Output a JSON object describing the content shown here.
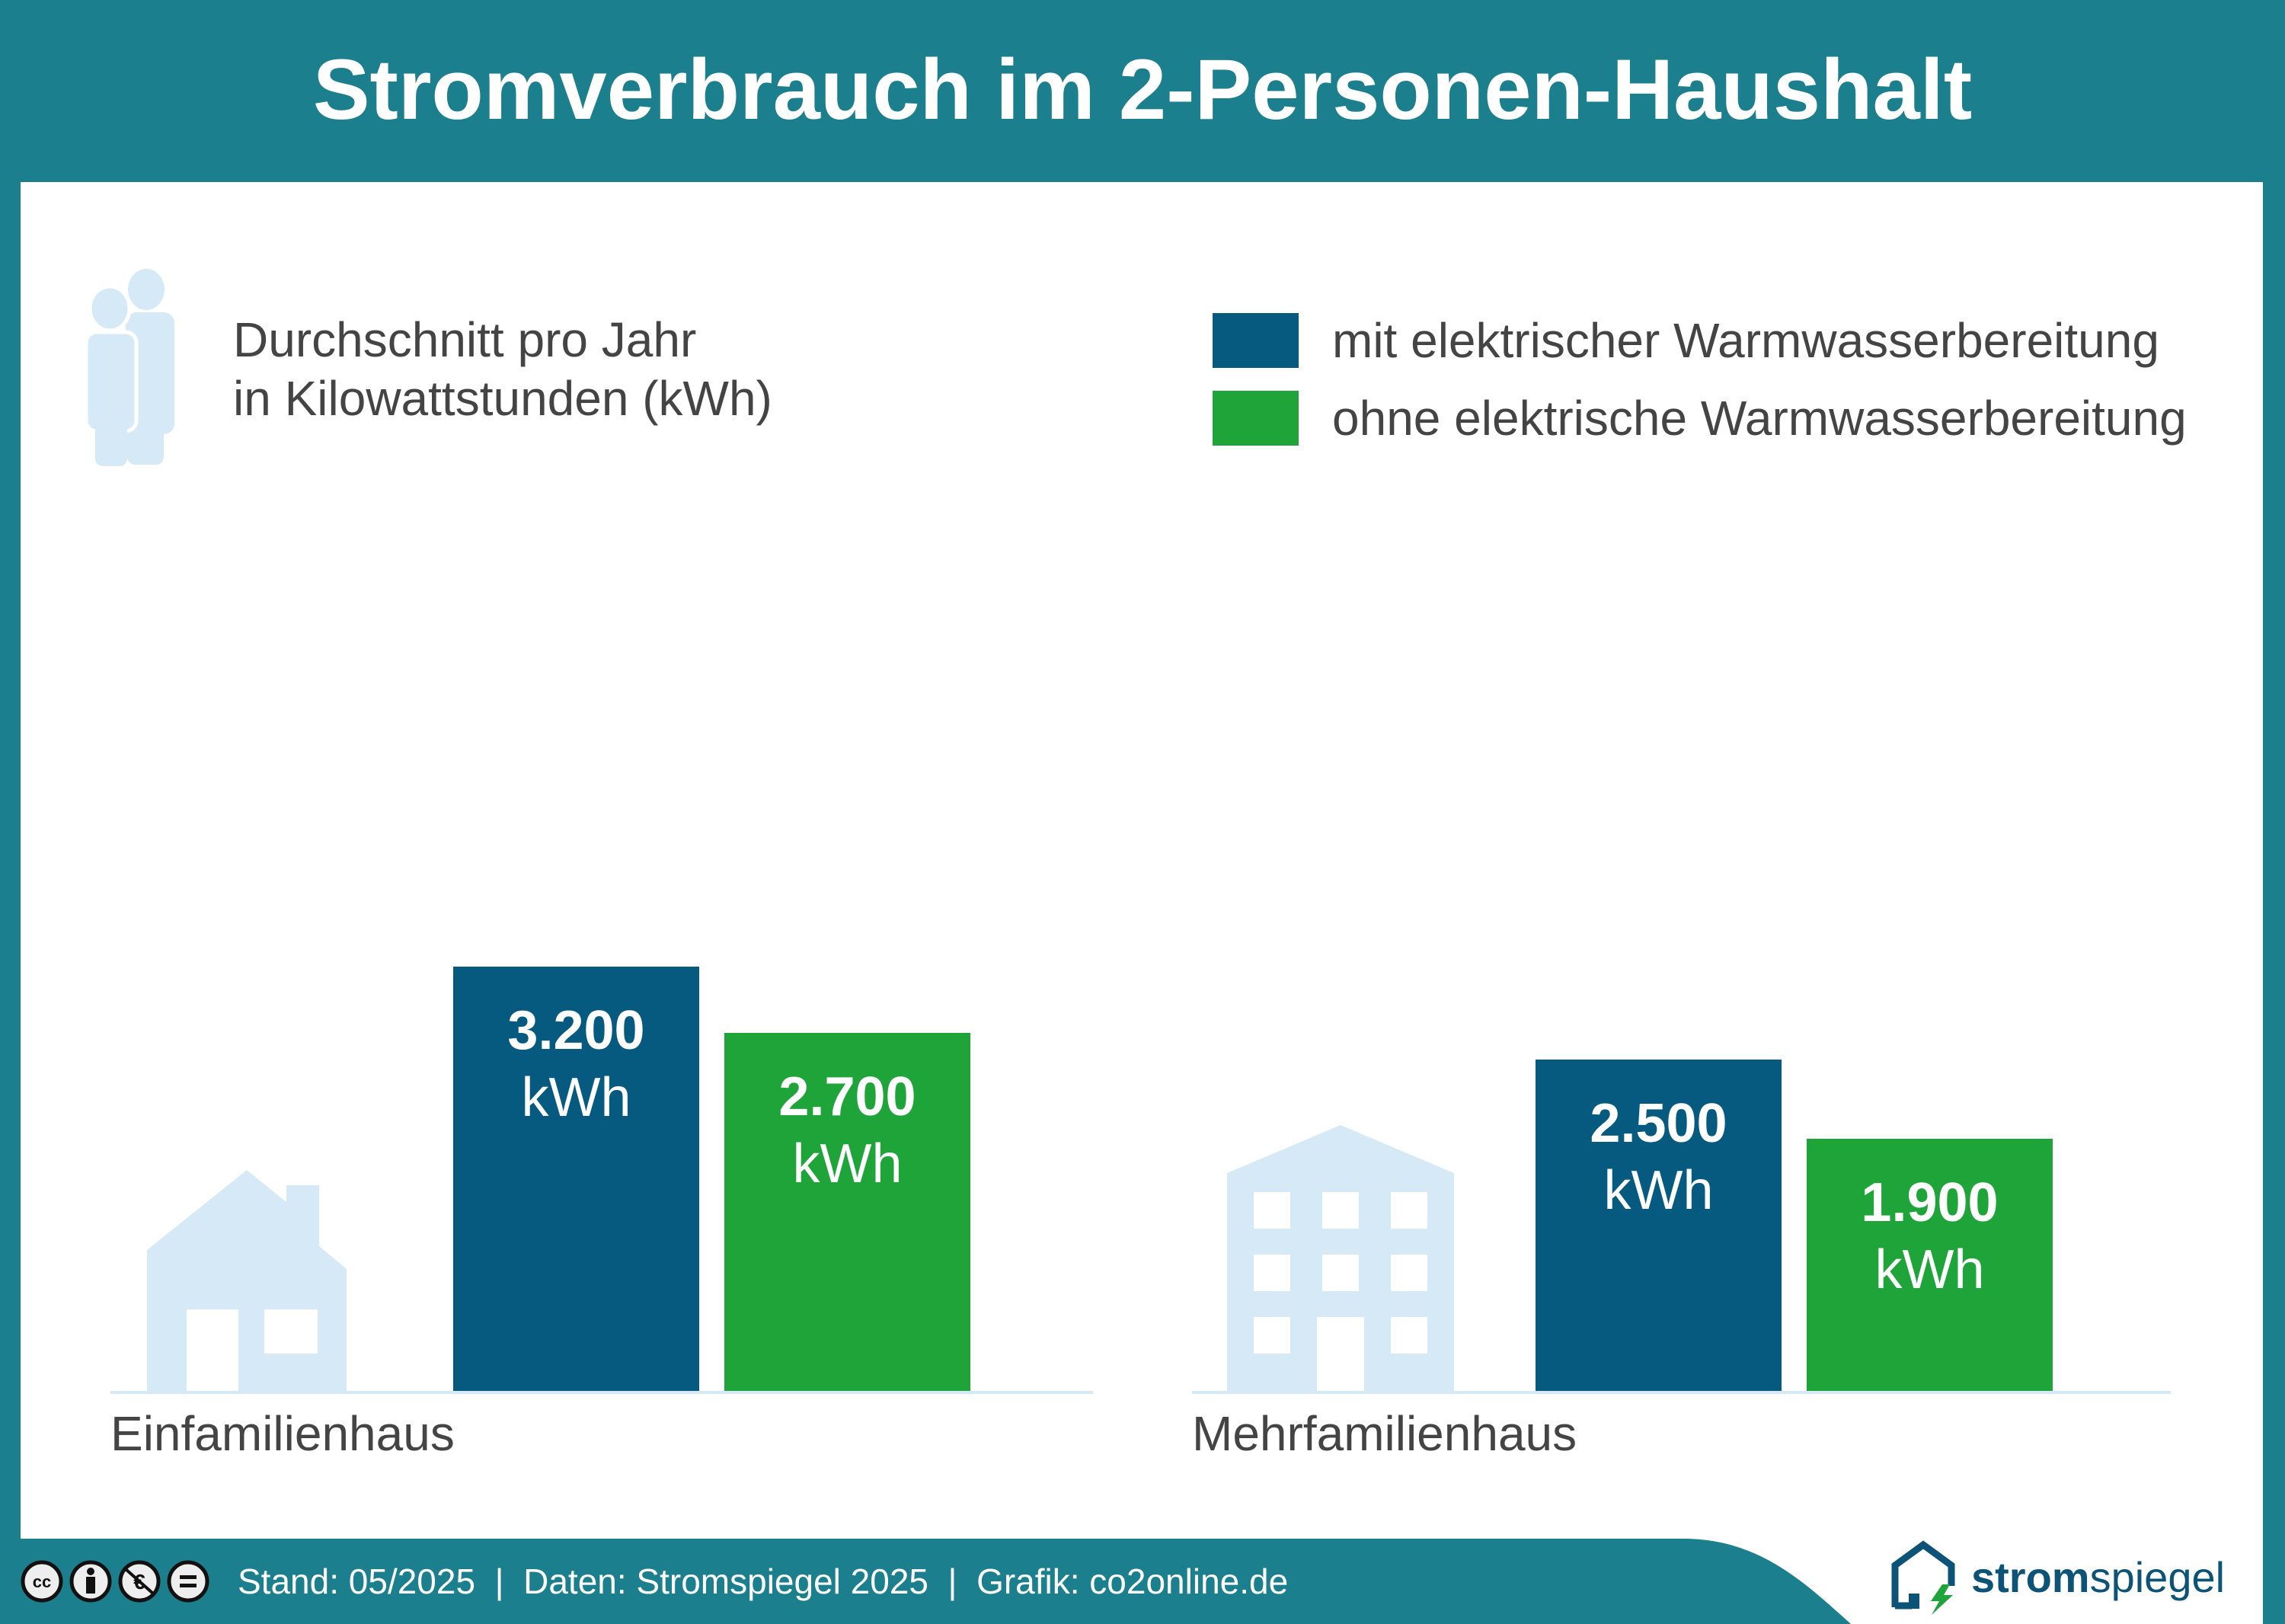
{
  "title": "Stromverbrauch im 2-Personen-Haushalt",
  "subtitle_line1": "Durchschnitt pro Jahr",
  "subtitle_line2": "in Kilowattstunden (kWh)",
  "colors": {
    "header": "#1b7f8e",
    "mit": "#065a80",
    "ohne": "#1fa43a",
    "icon": "#d6e9f6"
  },
  "chart_data": {
    "type": "bar",
    "title": "Stromverbrauch im 2-Personen-Haushalt",
    "ylabel": "Durchschnitt pro Jahr in Kilowattstunden (kWh)",
    "categories": [
      "Einfamilienhaus",
      "Mehrfamilienhaus"
    ],
    "series": [
      {
        "name": "mit elektrischer Warmwasserbereitung",
        "values": [
          3200,
          2500
        ],
        "labels": [
          "3.200",
          "2.500"
        ]
      },
      {
        "name": "ohne elektrische Warmwasserbereitung",
        "values": [
          2700,
          1900
        ],
        "labels": [
          "2.700",
          "1.900"
        ]
      }
    ],
    "unit": "kWh",
    "ylim": [
      0,
      3200
    ],
    "legend": "top-right",
    "grid": false
  },
  "footer": {
    "text": "Stand: 05/2025  |  Daten: Stromspiegel 2025  |  Grafik: co2online.de",
    "logo_strom": "strom",
    "logo_spiegel": "spiegel",
    "license_icons": [
      "cc",
      "by",
      "nc",
      "nd"
    ]
  }
}
